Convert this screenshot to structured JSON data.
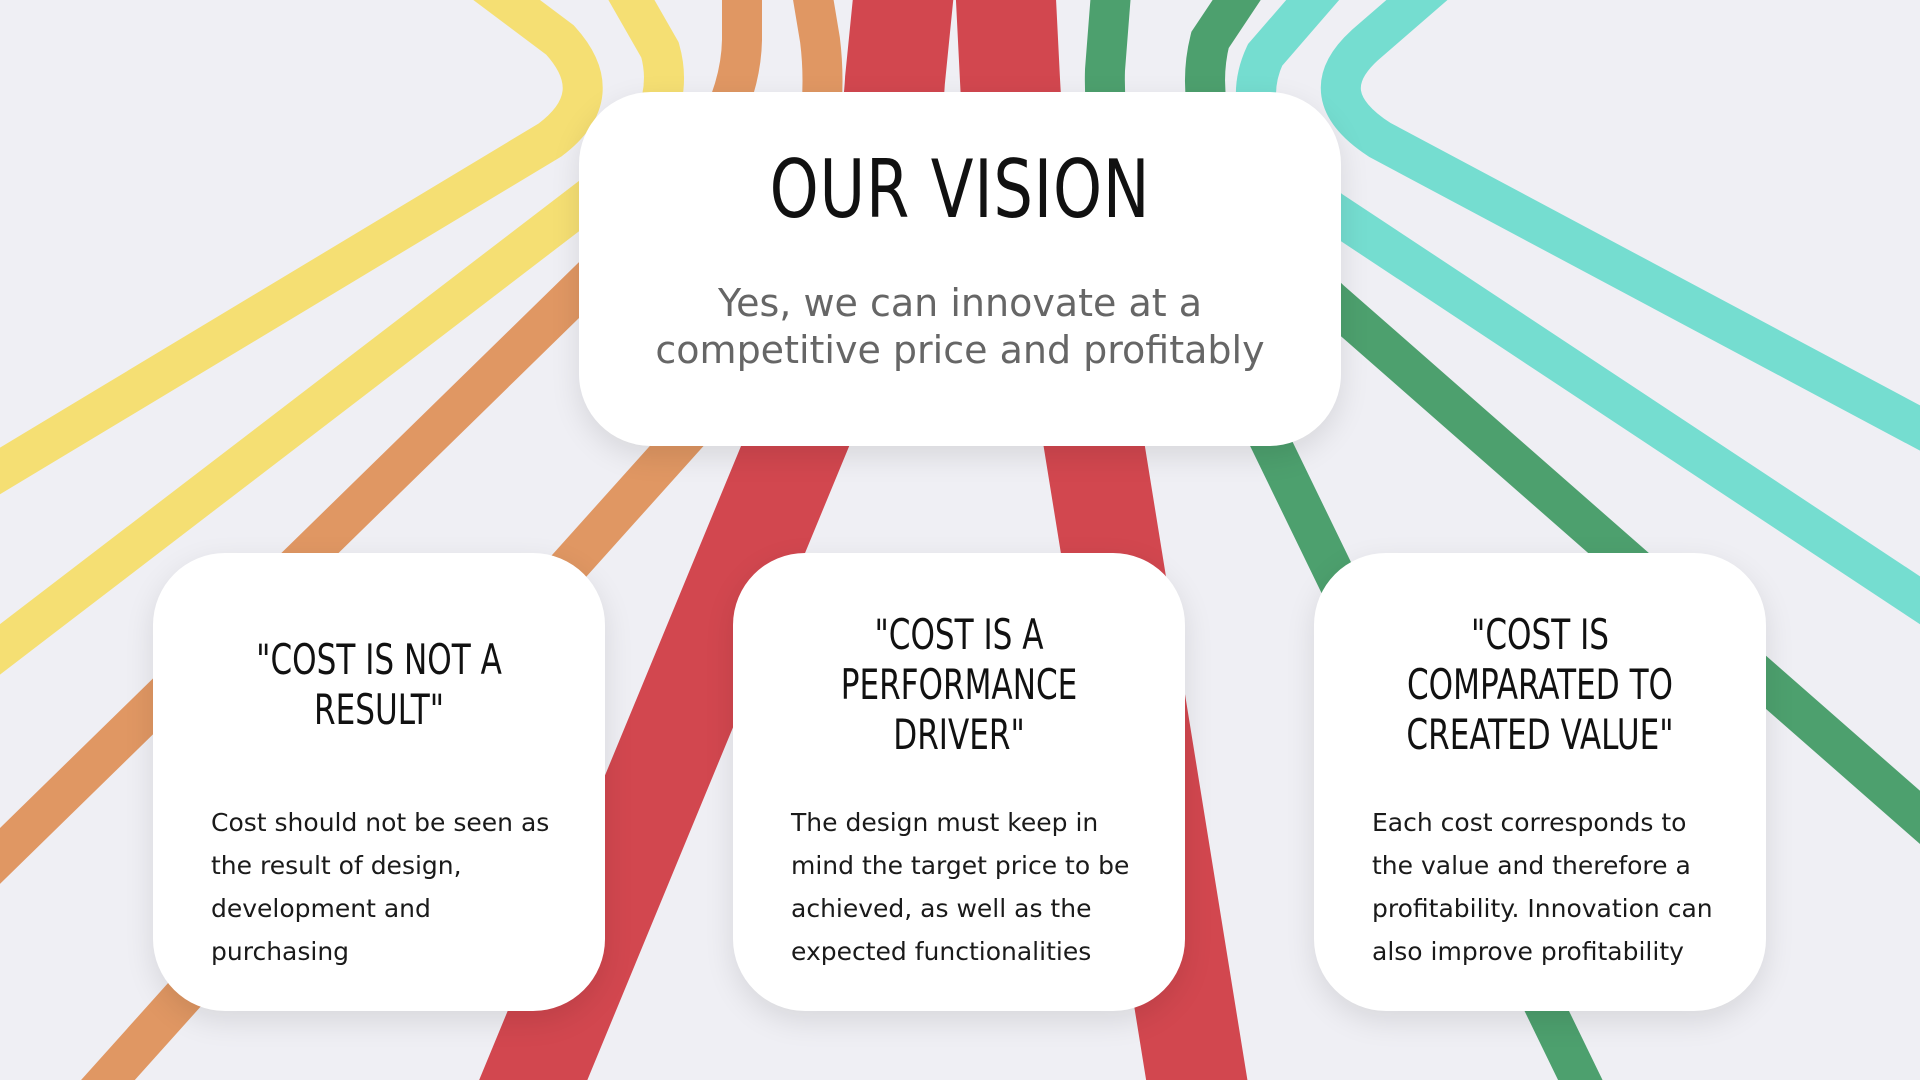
{
  "colors": {
    "background": "#efeff4",
    "yellow": "#f5df73",
    "orange": "#e09763",
    "red": "#d2474f",
    "green": "#4da06e",
    "teal": "#75ddd0",
    "card": "#ffffff"
  },
  "main": {
    "title": "OUR VISION",
    "subtitle_line1": "Yes, we can innovate at a",
    "subtitle_line2": "competitive price and profitably"
  },
  "pillars": [
    {
      "title_line1": "\"COST IS NOT A",
      "title_line2": "RESULT\"",
      "title_line3": "",
      "text_line1": "Cost should not be seen as",
      "text_line2": "the result of design,",
      "text_line3": "development and",
      "text_line4": "purchasing"
    },
    {
      "title_line1": "\"COST IS A",
      "title_line2": "PERFORMANCE",
      "title_line3": "DRIVER\"",
      "text_line1": "The design must keep in",
      "text_line2": "mind the target price to be",
      "text_line3": "achieved, as well as the",
      "text_line4": "expected functionalities"
    },
    {
      "title_line1": "\"COST IS",
      "title_line2": "COMPARATED TO",
      "title_line3": "CREATED VALUE\"",
      "text_line1": "Each cost corresponds to",
      "text_line2": "the value and therefore a",
      "text_line3": "profitability. Innovation can",
      "text_line4": "also improve profitability"
    }
  ]
}
